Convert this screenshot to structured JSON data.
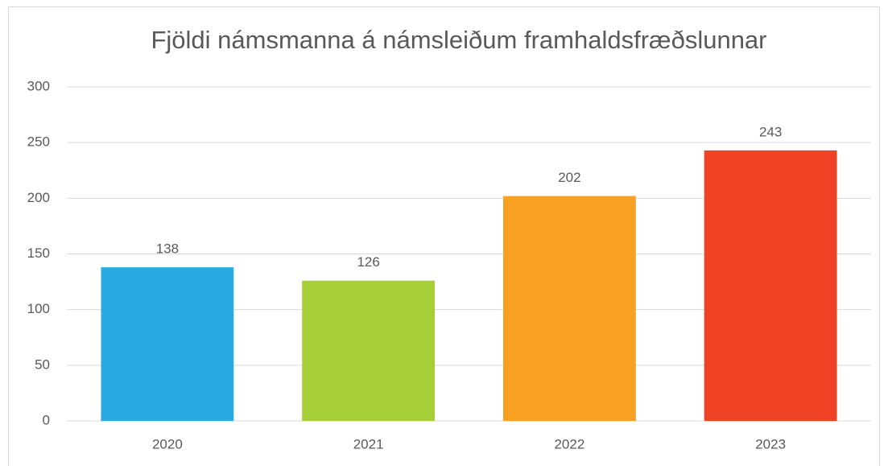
{
  "chart_data": {
    "type": "bar",
    "title": "Fjöldi námsmanna á námsleiðum framhaldsfræðslunnar",
    "categories": [
      "2020",
      "2021",
      "2022",
      "2023"
    ],
    "values": [
      138,
      126,
      202,
      243
    ],
    "colors": [
      "#29abe2",
      "#a6ce39",
      "#f7a021",
      "#ef4123"
    ],
    "ylim": [
      0,
      300
    ],
    "yticks": [
      0,
      50,
      100,
      150,
      200,
      250,
      300
    ],
    "grid": true
  }
}
